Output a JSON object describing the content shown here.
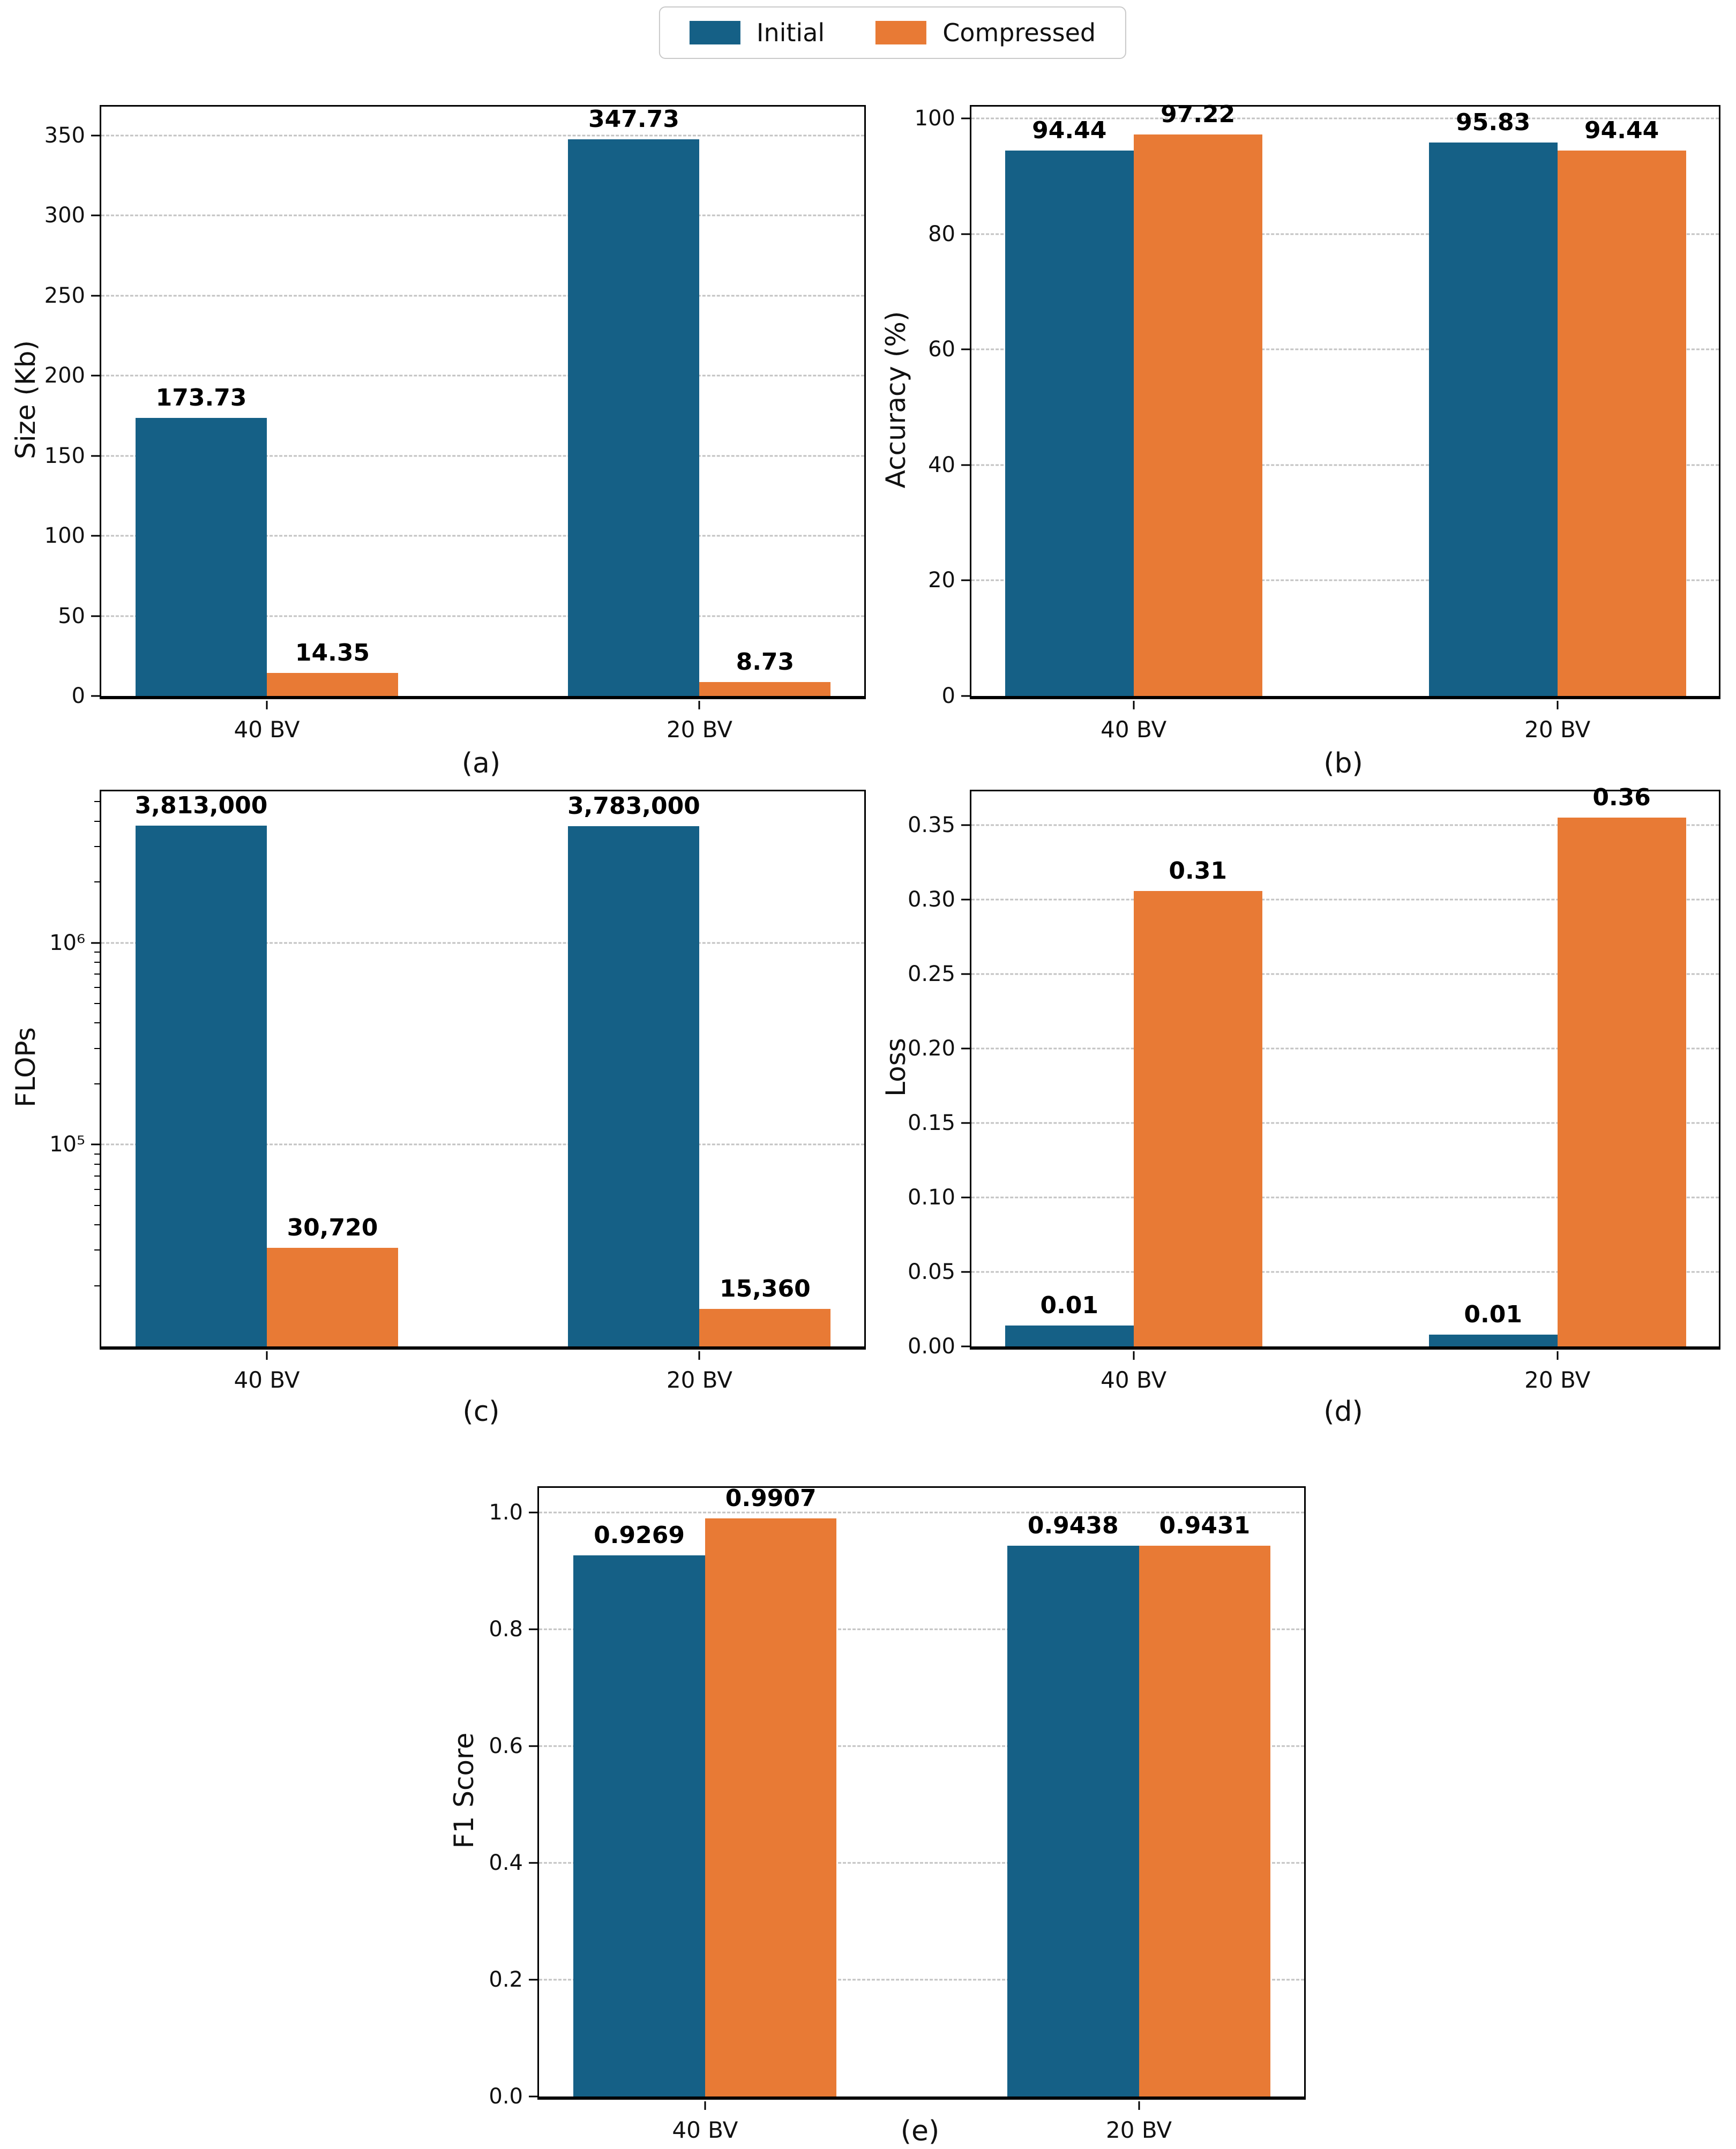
{
  "legend": {
    "items": [
      {
        "label": "Initial",
        "color": "#156086"
      },
      {
        "label": "Compressed",
        "color": "#e87a35"
      }
    ]
  },
  "chart_data": [
    {
      "id": "a",
      "type": "bar",
      "caption": "(a)",
      "ylabel": "Size (Kb)",
      "xlabel": "",
      "scale": "linear",
      "ylim": [
        0,
        368
      ],
      "grid": true,
      "legend_position": "figure-top-center",
      "categories": [
        "40 BV",
        "20 BV"
      ],
      "yticks": [
        {
          "v": 0,
          "label": "0"
        },
        {
          "v": 50,
          "label": "50"
        },
        {
          "v": 100,
          "label": "100"
        },
        {
          "v": 150,
          "label": "150"
        },
        {
          "v": 200,
          "label": "200"
        },
        {
          "v": 250,
          "label": "250"
        },
        {
          "v": 300,
          "label": "300"
        },
        {
          "v": 350,
          "label": "350"
        }
      ],
      "series": [
        {
          "name": "Initial",
          "values": [
            173.73,
            347.73
          ],
          "labels": [
            "173.73",
            "347.73"
          ]
        },
        {
          "name": "Compressed",
          "values": [
            14.35,
            8.73
          ],
          "labels": [
            "14.35",
            "8.73"
          ]
        }
      ]
    },
    {
      "id": "b",
      "type": "bar",
      "caption": "(b)",
      "ylabel": "Accuracy (%)",
      "xlabel": "",
      "scale": "linear",
      "ylim": [
        0,
        102.08
      ],
      "grid": true,
      "categories": [
        "40 BV",
        "20 BV"
      ],
      "yticks": [
        {
          "v": 0,
          "label": "0"
        },
        {
          "v": 20,
          "label": "20"
        },
        {
          "v": 40,
          "label": "40"
        },
        {
          "v": 60,
          "label": "60"
        },
        {
          "v": 80,
          "label": "80"
        },
        {
          "v": 100,
          "label": "100"
        }
      ],
      "series": [
        {
          "name": "Initial",
          "values": [
            94.44,
            95.83
          ],
          "labels": [
            "94.44",
            "95.83"
          ]
        },
        {
          "name": "Compressed",
          "values": [
            97.22,
            94.44
          ],
          "labels": [
            "97.22",
            "94.44"
          ]
        }
      ]
    },
    {
      "id": "c",
      "type": "bar",
      "caption": "(c)",
      "ylabel": "FLOPs",
      "xlabel": "",
      "scale": "log",
      "ylim": [
        10000,
        5623413
      ],
      "grid": true,
      "categories": [
        "40 BV",
        "20 BV"
      ],
      "yticks": [
        {
          "v": 100000,
          "label": "10⁵"
        },
        {
          "v": 1000000,
          "label": "10⁶"
        }
      ],
      "yticks_minor": [
        20000,
        30000,
        40000,
        50000,
        60000,
        70000,
        80000,
        90000,
        200000,
        300000,
        400000,
        500000,
        600000,
        700000,
        800000,
        900000,
        2000000,
        3000000,
        4000000,
        5000000
      ],
      "series": [
        {
          "name": "Initial",
          "values": [
            3813000,
            3783000
          ],
          "labels": [
            "3,813,000",
            "3,783,000"
          ]
        },
        {
          "name": "Compressed",
          "values": [
            30720,
            15360
          ],
          "labels": [
            "30,720",
            "15,360"
          ]
        }
      ]
    },
    {
      "id": "d",
      "type": "bar",
      "caption": "(d)",
      "ylabel": "Loss",
      "xlabel": "",
      "scale": "linear",
      "ylim": [
        0,
        0.3728
      ],
      "grid": true,
      "categories": [
        "40 BV",
        "20 BV"
      ],
      "yticks": [
        {
          "v": 0.0,
          "label": "0.00"
        },
        {
          "v": 0.05,
          "label": "0.05"
        },
        {
          "v": 0.1,
          "label": "0.10"
        },
        {
          "v": 0.15,
          "label": "0.15"
        },
        {
          "v": 0.2,
          "label": "0.20"
        },
        {
          "v": 0.25,
          "label": "0.25"
        },
        {
          "v": 0.3,
          "label": "0.30"
        },
        {
          "v": 0.35,
          "label": "0.35"
        }
      ],
      "series": [
        {
          "name": "Initial",
          "values": [
            0.014,
            0.008
          ],
          "labels": [
            "0.01",
            "0.01"
          ]
        },
        {
          "name": "Compressed",
          "values": [
            0.306,
            0.355
          ],
          "labels": [
            "0.31",
            "0.36"
          ]
        }
      ]
    },
    {
      "id": "e",
      "type": "bar",
      "caption": "(e)",
      "ylabel": "F1 Score",
      "xlabel": "",
      "scale": "linear",
      "ylim": [
        0,
        1.0426
      ],
      "grid": true,
      "categories": [
        "40 BV",
        "20 BV"
      ],
      "yticks": [
        {
          "v": 0.0,
          "label": "0.0"
        },
        {
          "v": 0.2,
          "label": "0.2"
        },
        {
          "v": 0.4,
          "label": "0.4"
        },
        {
          "v": 0.6,
          "label": "0.6"
        },
        {
          "v": 0.8,
          "label": "0.8"
        },
        {
          "v": 1.0,
          "label": "1.0"
        }
      ],
      "series": [
        {
          "name": "Initial",
          "values": [
            0.9269,
            0.9438
          ],
          "labels": [
            "0.9269",
            "0.9438"
          ]
        },
        {
          "name": "Compressed",
          "values": [
            0.9907,
            0.9431
          ],
          "labels": [
            "0.9907",
            "0.9431"
          ]
        }
      ]
    }
  ]
}
